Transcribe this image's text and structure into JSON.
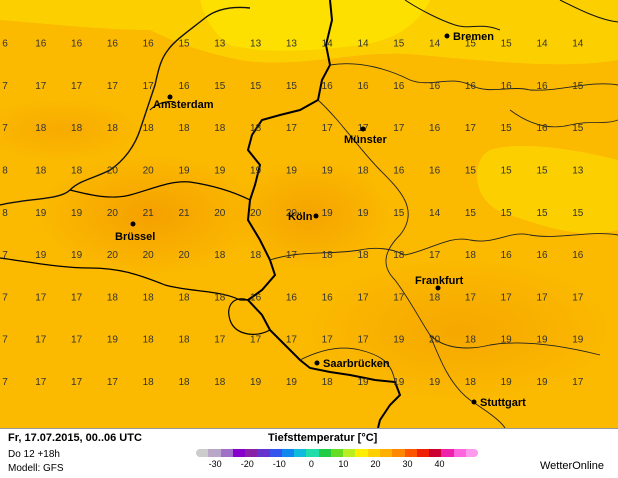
{
  "footer": {
    "date": "Fr, 17.07.2015, 00..06 UTC",
    "run": "Do 12 +18h",
    "model": "Modell: GFS",
    "title": "Tiefsttemperatur [°C]",
    "brand": "WetterOnline"
  },
  "legend": {
    "colors": [
      "#cccccc",
      "#b9a7c8",
      "#a070c8",
      "#8800cc",
      "#8a22a8",
      "#6633cc",
      "#3355ee",
      "#1188ee",
      "#11bbdd",
      "#22ddaa",
      "#22cc44",
      "#66dd22",
      "#bbee22",
      "#ffee00",
      "#ffd000",
      "#ffb000",
      "#ff8800",
      "#ff5500",
      "#ee2200",
      "#cc0033",
      "#ee22aa",
      "#ff66dd",
      "#ff99ee"
    ],
    "ticks": [
      {
        "label": "-30",
        "value": -30
      },
      {
        "label": "-20",
        "value": -20
      },
      {
        "label": "-10",
        "value": -10
      },
      {
        "label": "0",
        "value": 0
      },
      {
        "label": "10",
        "value": 10
      },
      {
        "label": "20",
        "value": 20
      },
      {
        "label": "30",
        "value": 30
      },
      {
        "label": "40",
        "value": 40
      }
    ]
  },
  "cities": [
    {
      "name": "Bremen"
    },
    {
      "name": "Amsterdam"
    },
    {
      "name": "Münster"
    },
    {
      "name": "Köln"
    },
    {
      "name": "Brüssel"
    },
    {
      "name": "Frankfurt"
    },
    {
      "name": "Saarbrücken"
    },
    {
      "name": "Stuttgart"
    }
  ],
  "grid": {
    "rows": [
      [
        "6",
        "16",
        "16",
        "16",
        "16",
        "15",
        "13",
        "13",
        "13",
        "14",
        "14",
        "15",
        "14",
        "15",
        "15",
        "14",
        "14"
      ],
      [
        "7",
        "17",
        "17",
        "17",
        "17",
        "16",
        "15",
        "15",
        "15",
        "16",
        "16",
        "16",
        "16",
        "16",
        "16",
        "16",
        "15"
      ],
      [
        "7",
        "18",
        "18",
        "18",
        "18",
        "18",
        "18",
        "18",
        "17",
        "17",
        "17",
        "17",
        "16",
        "17",
        "15",
        "16",
        "15"
      ],
      [
        "8",
        "18",
        "18",
        "20",
        "20",
        "19",
        "19",
        "19",
        "19",
        "19",
        "18",
        "16",
        "16",
        "15",
        "15",
        "15",
        "13"
      ],
      [
        "8",
        "19",
        "19",
        "20",
        "21",
        "21",
        "20",
        "20",
        "20",
        "19",
        "19",
        "15",
        "14",
        "15",
        "15",
        "15",
        "15"
      ],
      [
        "7",
        "19",
        "19",
        "20",
        "20",
        "20",
        "18",
        "18",
        "17",
        "18",
        "18",
        "18",
        "17",
        "18",
        "16",
        "16",
        "16"
      ],
      [
        "7",
        "17",
        "17",
        "18",
        "18",
        "18",
        "18",
        "16",
        "16",
        "16",
        "17",
        "17",
        "18",
        "17",
        "17",
        "17",
        "17"
      ],
      [
        "7",
        "17",
        "17",
        "19",
        "18",
        "18",
        "17",
        "17",
        "17",
        "17",
        "17",
        "19",
        "20",
        "18",
        "19",
        "19",
        "19"
      ],
      [
        "7",
        "17",
        "17",
        "17",
        "18",
        "18",
        "18",
        "19",
        "19",
        "18",
        "19",
        "19",
        "19",
        "18",
        "19",
        "19",
        "17"
      ]
    ]
  }
}
